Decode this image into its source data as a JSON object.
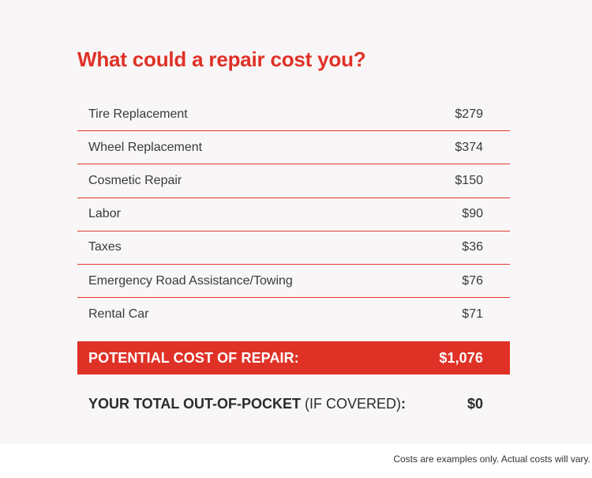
{
  "title": "What could a repair cost you?",
  "items": [
    {
      "label": "Tire Replacement",
      "value": "$279"
    },
    {
      "label": "Wheel Replacement",
      "value": "$374"
    },
    {
      "label": "Cosmetic Repair",
      "value": "$150"
    },
    {
      "label": "Labor",
      "value": "$90"
    },
    {
      "label": "Taxes",
      "value": "$36"
    },
    {
      "label": "Emergency Road Assistance/Towing",
      "value": "$76"
    },
    {
      "label": "Rental Car",
      "value": "$71"
    }
  ],
  "potential": {
    "label": "POTENTIAL COST OF REPAIR:",
    "value": "$1,076"
  },
  "out_of_pocket": {
    "label_main": "YOUR TOTAL OUT-OF-POCKET",
    "label_paren": " (IF COVERED)",
    "label_colon": ":",
    "value": "$0"
  },
  "footnote": "Costs are examples only. Actual costs will vary.",
  "colors": {
    "accent": "#e03127",
    "background": "#f8f6f6",
    "text": "#3a3a3a"
  }
}
